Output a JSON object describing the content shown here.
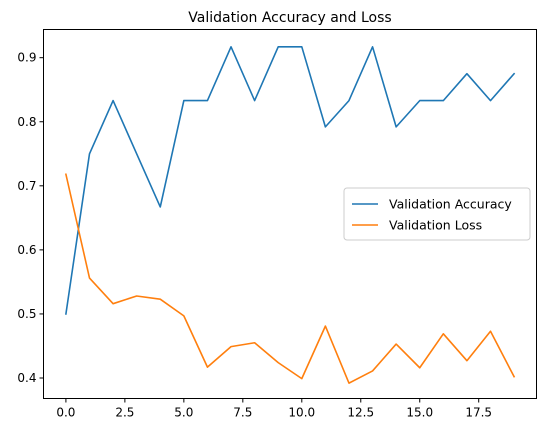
{
  "chart_data": {
    "type": "line",
    "title": "Validation Accuracy and Loss",
    "xlabel": "",
    "ylabel": "",
    "x": [
      0,
      1,
      2,
      3,
      4,
      5,
      6,
      7,
      8,
      9,
      10,
      11,
      12,
      13,
      14,
      15,
      16,
      17,
      18,
      19
    ],
    "xlim": [
      -0.95,
      19.95
    ],
    "ylim": [
      0.368,
      0.944
    ],
    "xticks": [
      0.0,
      2.5,
      5.0,
      7.5,
      10.0,
      12.5,
      15.0,
      17.5
    ],
    "xtick_labels": [
      "0.0",
      "2.5",
      "5.0",
      "7.5",
      "10.0",
      "12.5",
      "15.0",
      "17.5"
    ],
    "yticks": [
      0.4,
      0.5,
      0.6,
      0.7,
      0.8,
      0.9
    ],
    "ytick_labels": [
      "0.4",
      "0.5",
      "0.6",
      "0.7",
      "0.8",
      "0.9"
    ],
    "grid": false,
    "legend_position": "center-right",
    "series": [
      {
        "name": "Validation Accuracy",
        "color": "#1f77b4",
        "values": [
          0.5,
          0.75,
          0.833,
          0.75,
          0.667,
          0.833,
          0.833,
          0.917,
          0.833,
          0.917,
          0.917,
          0.792,
          0.833,
          0.917,
          0.792,
          0.833,
          0.833,
          0.875,
          0.833,
          0.875
        ]
      },
      {
        "name": "Validation Loss",
        "color": "#ff7f0e",
        "values": [
          0.718,
          0.556,
          0.516,
          0.528,
          0.523,
          0.497,
          0.417,
          0.449,
          0.455,
          0.424,
          0.399,
          0.481,
          0.392,
          0.411,
          0.453,
          0.416,
          0.469,
          0.427,
          0.473,
          0.402
        ]
      }
    ]
  }
}
